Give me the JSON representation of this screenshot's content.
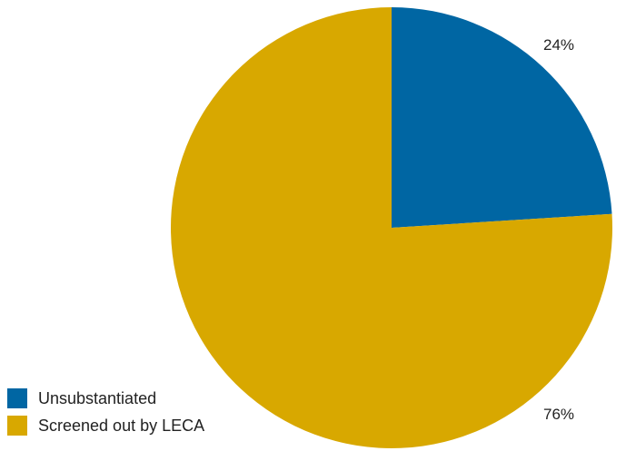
{
  "chart_data": {
    "type": "pie",
    "title": "",
    "slices": [
      {
        "name": "Unsubstantiated",
        "value": 24,
        "label": "24%",
        "color": "#0066A3"
      },
      {
        "name": "Screened out by LECA",
        "value": 76,
        "label": "76%",
        "color": "#D8A800"
      }
    ],
    "start_angle": "12 o'clock",
    "direction": "clockwise",
    "legend_position": "bottom-left"
  }
}
